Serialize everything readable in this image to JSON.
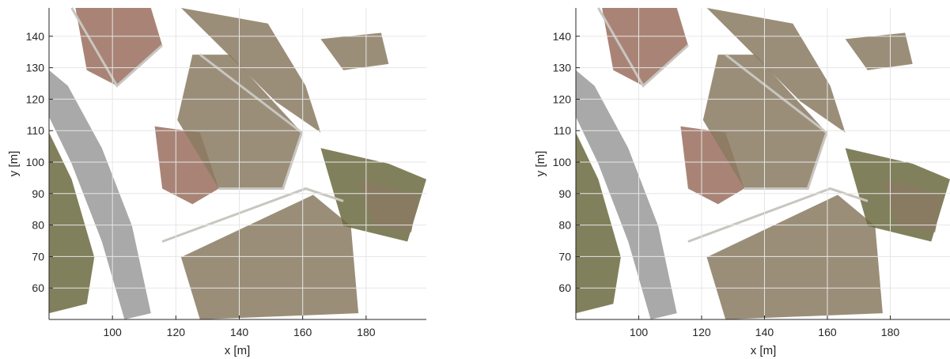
{
  "chart_data": [
    {
      "type": "scatter",
      "title": "",
      "xlabel": "x [m]",
      "ylabel": "y [m]",
      "xlim": [
        80,
        199
      ],
      "ylim": [
        50,
        149
      ],
      "xticks": [
        100,
        120,
        140,
        160,
        180
      ],
      "yticks": [
        60,
        70,
        80,
        90,
        100,
        110,
        120,
        130,
        140
      ],
      "grid": true,
      "content": "colored point cloud orthophoto (aerial view)"
    },
    {
      "type": "scatter",
      "title": "",
      "xlabel": "x [m]",
      "ylabel": "y [m]",
      "xlim": [
        80,
        199
      ],
      "ylim": [
        50,
        149
      ],
      "xticks": [
        100,
        120,
        140,
        160,
        180
      ],
      "yticks": [
        60,
        70,
        80,
        90,
        100,
        110,
        120,
        130,
        140
      ],
      "grid": true,
      "content": "colored point cloud orthophoto (aerial view)"
    }
  ],
  "colors": {
    "grid": "#e6e6e6",
    "axis": "#262626",
    "soil": "#8a7a62",
    "road": "#9a9a9a",
    "vegetation": "#6b6a3f",
    "roof_tiles": "#9a6f5e"
  }
}
